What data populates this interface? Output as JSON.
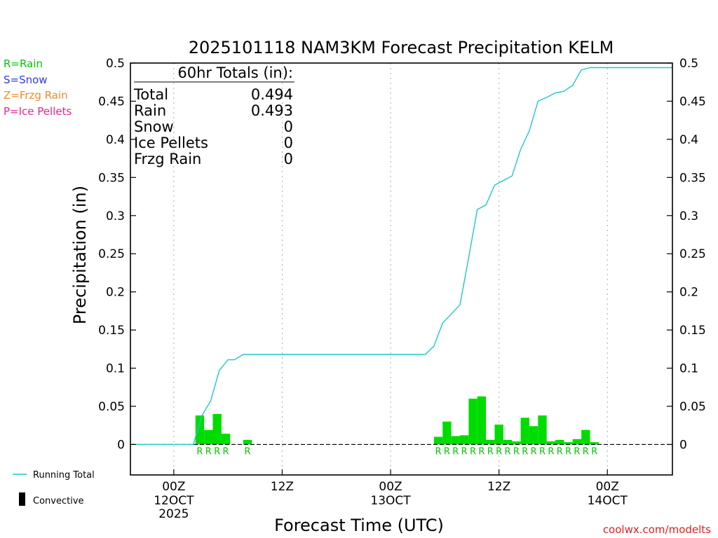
{
  "chart_data": {
    "type": "bar",
    "title": "2025101118 NAM3KM Forecast Precipitation KELM",
    "xlabel": "Forecast Time (UTC)",
    "ylabel": "Precipitation (in)",
    "ylim": [
      -0.04,
      0.5
    ],
    "yticks": [
      0,
      0.05,
      0.1,
      0.15,
      0.2,
      0.25,
      0.3,
      0.35,
      0.4,
      0.45,
      0.5
    ],
    "ytick_labels": [
      "0",
      "0.05",
      "0.1",
      "0.15",
      "0.2",
      "0.25",
      "0.3",
      "0.35",
      "0.4",
      "0.45",
      "0.5"
    ],
    "xlim_hours": [
      -4,
      46
    ],
    "xticks": [
      {
        "hour": 0,
        "line1": "00Z",
        "line2": "12OCT",
        "line3": "2025"
      },
      {
        "hour": 10,
        "line1": "12Z",
        "line2": "",
        "line3": ""
      },
      {
        "hour": 20,
        "line1": "00Z",
        "line2": "13OCT",
        "line3": ""
      },
      {
        "hour": 30,
        "line1": "12Z",
        "line2": "",
        "line3": ""
      },
      {
        "hour": 40,
        "line1": "00Z",
        "line2": "14OCT",
        "line3": ""
      }
    ],
    "bars": {
      "start_hours": [
        2.0,
        2.8,
        3.6,
        4.4,
        6.4,
        24.0,
        24.8,
        25.6,
        26.4,
        27.2,
        28.0,
        28.8,
        29.6,
        30.4,
        31.2,
        32.0,
        32.8,
        33.6,
        34.4,
        35.2,
        36.0,
        36.8,
        37.6,
        38.4
      ],
      "width_hours": 0.8,
      "values": [
        0.038,
        0.019,
        0.04,
        0.014,
        0.006,
        0.01,
        0.03,
        0.011,
        0.012,
        0.06,
        0.063,
        0.006,
        0.026,
        0.006,
        0.004,
        0.035,
        0.024,
        0.038,
        0.004,
        0.006,
        0.003,
        0.007,
        0.019,
        0.003
      ],
      "types": [
        "R",
        "R",
        "R",
        "R",
        "R",
        "R",
        "R",
        "R",
        "R",
        "R",
        "R",
        "R",
        "R",
        "R",
        "R",
        "R",
        "R",
        "R",
        "R",
        "R",
        "R",
        "R",
        "R",
        "R"
      ]
    },
    "running_total": {
      "hours": [
        -4,
        1.8,
        2.6,
        3.4,
        4.2,
        5.0,
        5.6,
        6.4,
        7.2,
        23.2,
        24.0,
        24.8,
        25.6,
        26.4,
        27.2,
        28.0,
        28.8,
        29.6,
        30.4,
        31.2,
        32.0,
        32.8,
        33.6,
        34.4,
        35.2,
        36.0,
        36.8,
        37.6,
        38.4,
        39.2,
        46
      ],
      "values": [
        0,
        0,
        0.038,
        0.057,
        0.097,
        0.111,
        0.111,
        0.118,
        0.118,
        0.118,
        0.129,
        0.159,
        0.171,
        0.183,
        0.245,
        0.308,
        0.314,
        0.34,
        0.346,
        0.352,
        0.387,
        0.411,
        0.45,
        0.455,
        0.461,
        0.463,
        0.471,
        0.491,
        0.494,
        0.494,
        0.494
      ]
    },
    "totals_box": {
      "heading": "60hr Totals (in):",
      "rows": [
        {
          "label": "Total",
          "value": "0.494"
        },
        {
          "label": "Rain",
          "value": "0.493"
        },
        {
          "label": "Snow",
          "value": "0"
        },
        {
          "label": "Ice Pellets",
          "value": "0"
        },
        {
          "label": "Frzg Rain",
          "value": "0"
        }
      ]
    },
    "type_legend": [
      {
        "text": "R=Rain",
        "color": "#00c800"
      },
      {
        "text": "S=Snow",
        "color": "#2a3cf0"
      },
      {
        "text": "Z=Frzg Rain",
        "color": "#f08a30"
      },
      {
        "text": "P=Ice Pellets",
        "color": "#f0208a"
      }
    ],
    "line_legend": {
      "running_total": "Running Total",
      "convective": "Convective"
    },
    "colors": {
      "bar": "#00dc00",
      "line": "#1ec8c8",
      "axis": "#000000",
      "grid": "#aaaaaa",
      "credit": "#e02020"
    },
    "credit": "coolwx.com/modelts"
  }
}
